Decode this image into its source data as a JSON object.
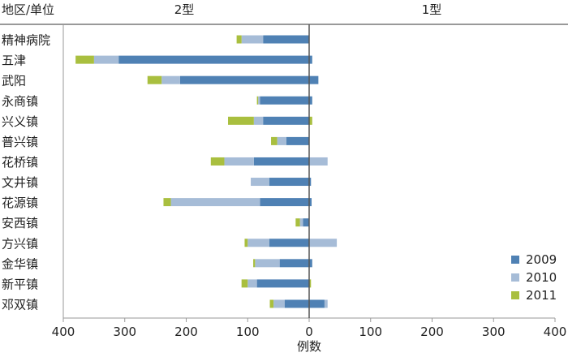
{
  "chart_data": {
    "type": "bar",
    "orientation": "horizontal",
    "stacked": true,
    "diverging": true,
    "corner_label": "地区/单位",
    "left_header": "2型",
    "right_header": "1型",
    "xlabel": "例数",
    "xlim": [
      -400,
      400
    ],
    "x_ticks": [
      -400,
      -300,
      -200,
      -100,
      0,
      100,
      200,
      300,
      400
    ],
    "x_tick_labels": [
      "400",
      "300",
      "200",
      "100",
      "0",
      "100",
      "200",
      "300",
      "400"
    ],
    "grid": false,
    "legend_position": "bottom-right",
    "categories": [
      "精神病院",
      "五津",
      "武阳",
      "永商镇",
      "兴义镇",
      "普兴镇",
      "花桥镇",
      "文井镇",
      "花源镇",
      "安西镇",
      "方兴镇",
      "金华镇",
      "新平镇",
      "邓双镇"
    ],
    "series": [
      {
        "name": "2009",
        "color": "#4f81b4",
        "type2": [
          75,
          310,
          210,
          80,
          75,
          37,
          90,
          65,
          80,
          10,
          65,
          48,
          85,
          40
        ],
        "type1": [
          0,
          5,
          15,
          5,
          0,
          0,
          0,
          3,
          4,
          0,
          0,
          5,
          0,
          25
        ]
      },
      {
        "name": "2010",
        "color": "#a6bcd7",
        "type2": [
          35,
          40,
          30,
          3,
          15,
          15,
          48,
          30,
          145,
          5,
          35,
          40,
          15,
          18
        ],
        "type1": [
          0,
          0,
          0,
          0,
          0,
          0,
          30,
          0,
          0,
          0,
          45,
          0,
          0,
          5
        ]
      },
      {
        "name": "2011",
        "color": "#a9bf3f",
        "type2": [
          8,
          30,
          23,
          2,
          42,
          10,
          22,
          0,
          12,
          7,
          5,
          3,
          10,
          6
        ],
        "type1": [
          0,
          0,
          0,
          0,
          5,
          0,
          0,
          0,
          0,
          0,
          0,
          0,
          3,
          0
        ]
      }
    ]
  }
}
